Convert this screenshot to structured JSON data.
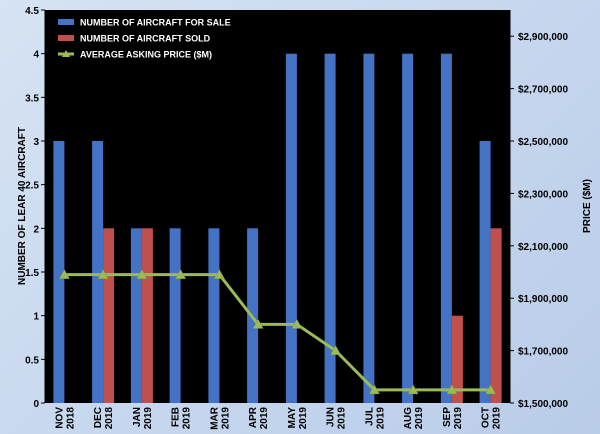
{
  "chart_data": {
    "type": "bar",
    "title": "",
    "categories": [
      [
        "NOV",
        "2018"
      ],
      [
        "DEC",
        "2018"
      ],
      [
        "JAN",
        "2019"
      ],
      [
        "FEB",
        "2019"
      ],
      [
        "MAR",
        "2019"
      ],
      [
        "APR",
        "2019"
      ],
      [
        "MAY",
        "2019"
      ],
      [
        "JUN",
        "2019"
      ],
      [
        "JUL",
        "2019"
      ],
      [
        "AUG",
        "2019"
      ],
      [
        "SEP",
        "2019"
      ],
      [
        "OCT",
        "2019"
      ]
    ],
    "series": [
      {
        "name": "NUMBER OF AIRCRAFT FOR SALE",
        "type": "bar",
        "axis": "left",
        "color": "#4472c4",
        "values": [
          3,
          3,
          2,
          2,
          2,
          2,
          4,
          4,
          4,
          4,
          4,
          3
        ]
      },
      {
        "name": "NUMBER OF AIRCRAFT SOLD",
        "type": "bar",
        "axis": "left",
        "color": "#c0504d",
        "values": [
          0,
          2,
          2,
          0,
          0,
          0,
          0,
          0,
          0,
          0,
          1,
          2
        ]
      },
      {
        "name": "AVERAGE ASKING PRICE ($M)",
        "type": "line",
        "axis": "right",
        "color": "#9bbb59",
        "marker": "triangle",
        "values": [
          1990000,
          1990000,
          1990000,
          1990000,
          1990000,
          1800000,
          1800000,
          1700000,
          1550000,
          1550000,
          1550000,
          1550000
        ]
      }
    ],
    "y_left": {
      "label": "NUMBER OF LEAR 40 AIRCRAFT",
      "min": 0,
      "max": 4.5,
      "ticks": [
        0,
        0.5,
        1,
        1.5,
        2,
        2.5,
        3,
        3.5,
        4,
        4.5
      ],
      "tick_labels": [
        "0",
        "0.5",
        "1",
        "1.5",
        "2",
        "2.5",
        "3",
        "3.5",
        "4",
        "4.5"
      ]
    },
    "y_right": {
      "label": "PRICE ($M)",
      "min": 1500000,
      "max": 3000000,
      "ticks": [
        1500000,
        1700000,
        1900000,
        2100000,
        2300000,
        2500000,
        2700000,
        2900000
      ],
      "tick_labels": [
        "$1,500,000",
        "$1,700,000",
        "$1,900,000",
        "$2,100,000",
        "$2,300,000",
        "$2,500,000",
        "$2,700,000",
        "$2,900,000"
      ]
    },
    "plot_background": "#000000",
    "grid": false,
    "legend": "top-left"
  }
}
